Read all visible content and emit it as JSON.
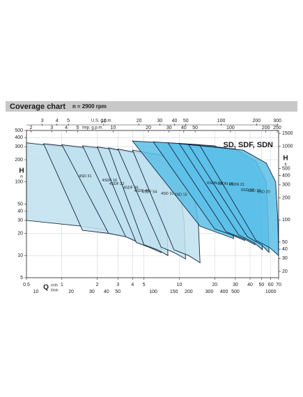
{
  "chart_data": {
    "type": "area",
    "title": "Coverage chart",
    "subtitle": "n ≈ 2900 rpm",
    "annotation": "SD, SDF, SDN",
    "x_label": "Q",
    "x_unit": "m³/h",
    "y_label": "H",
    "y_unit": "m",
    "y2_label": "H",
    "y2_unit": "ft",
    "log_x": true,
    "log_y": true,
    "grid": true,
    "xlim": [
      0.5,
      70
    ],
    "xticks": [
      0.5,
      1,
      2,
      3,
      4,
      5,
      10,
      20,
      30,
      40,
      50,
      60,
      70
    ],
    "ylim": [
      5,
      500
    ],
    "yticks": [
      5,
      10,
      20,
      30,
      40,
      50,
      100,
      200,
      300,
      400,
      500
    ],
    "y2lim": [
      16.4,
      1640
    ],
    "y2ticks": [
      20,
      30,
      40,
      50,
      100,
      200,
      300,
      400,
      500,
      1000,
      1500
    ],
    "x2_axes": [
      {
        "label": "U.S. g.p.m.",
        "lim": [
          2.2,
          308
        ],
        "ticks": [
          3,
          4,
          5,
          10,
          20,
          30,
          40,
          50,
          100,
          200,
          300
        ]
      },
      {
        "label": "Imp. g.p.m.",
        "lim": [
          1.83,
          257
        ],
        "ticks": [
          2,
          3,
          4,
          5,
          10,
          20,
          30,
          40,
          50,
          100,
          200,
          250
        ]
      },
      {
        "label": "l/min",
        "lim": [
          8.33,
          1167
        ],
        "ticks": [
          10,
          20,
          30,
          40,
          50,
          100,
          150,
          200,
          300,
          400,
          500,
          1000
        ]
      }
    ],
    "series": [
      {
        "name": "4SD 31",
        "color": "#bfe0ef",
        "x": [
          0.5,
          1,
          1.5,
          2,
          2.3,
          2.4,
          1.5,
          0.5
        ],
        "values": [
          340,
          300,
          240,
          150,
          60,
          22,
          25,
          30
        ]
      },
      {
        "name": "4SDF 16",
        "color": "#bfe0ef",
        "x": [
          0.7,
          1.5,
          2.5,
          3.3,
          3.5,
          3.6,
          2.5,
          1.5
        ],
        "values": [
          330,
          290,
          220,
          120,
          50,
          18,
          20,
          22
        ]
      },
      {
        "name": "4SDF 22",
        "color": "#bfe0ef",
        "x": [
          1,
          2,
          3,
          3.8,
          4.3,
          4.4,
          3.5,
          2.5
        ],
        "values": [
          320,
          280,
          220,
          140,
          40,
          16,
          18,
          20
        ]
      },
      {
        "name": "4SDF 36",
        "color": "#bfe0ef",
        "x": [
          1.5,
          3,
          4,
          5,
          5.6,
          5.7,
          4.5,
          3.5
        ],
        "values": [
          310,
          270,
          200,
          120,
          35,
          13,
          15,
          18
        ]
      },
      {
        "name": "4SDF 46",
        "color": "#bfe0ef",
        "x": [
          2,
          3.5,
          5,
          6.2,
          6.8,
          7,
          5.5,
          4.3
        ],
        "values": [
          300,
          260,
          190,
          110,
          30,
          11,
          13,
          15
        ]
      },
      {
        "name": "4SDF 54",
        "color": "#bfe0ef",
        "x": [
          2.5,
          4,
          6,
          7.2,
          7.8,
          8,
          6.5,
          5
        ],
        "values": [
          290,
          250,
          180,
          100,
          30,
          10,
          12,
          14
        ]
      },
      {
        "name": "4SD 10",
        "color": "#bfe0ef",
        "x": [
          3,
          5,
          8,
          10,
          11,
          11.3,
          9,
          7
        ],
        "values": [
          280,
          240,
          170,
          90,
          28,
          9,
          11,
          13
        ]
      },
      {
        "name": "4SD 15",
        "color": "#bfe0ef",
        "x": [
          4,
          7,
          11,
          13,
          14.5,
          15,
          12,
          9
        ],
        "values": [
          270,
          230,
          160,
          90,
          28,
          8,
          10,
          12
        ]
      },
      {
        "name": "6SDN 12",
        "color": "#5cbfe8",
        "x": [
          4,
          10,
          20,
          26,
          28,
          29,
          22,
          15
        ],
        "values": [
          360,
          330,
          230,
          120,
          40,
          17,
          20,
          25
        ]
      },
      {
        "name": "6SDN 16",
        "color": "#5cbfe8",
        "x": [
          6,
          15,
          25,
          32,
          35,
          36,
          28,
          20
        ],
        "values": [
          350,
          320,
          220,
          130,
          40,
          16,
          19,
          23
        ]
      },
      {
        "name": "6SDN 21",
        "color": "#5cbfe8",
        "x": [
          8,
          20,
          32,
          40,
          43,
          44,
          35,
          25
        ],
        "values": [
          340,
          310,
          210,
          120,
          40,
          14,
          17,
          21
        ]
      },
      {
        "name": "6SD 18",
        "color": "#5cbfe8",
        "x": [
          10,
          25,
          40,
          48,
          50,
          51,
          43,
          32
        ],
        "values": [
          330,
          290,
          200,
          110,
          30,
          12,
          15,
          19
        ]
      },
      {
        "name": "6SD 19",
        "color": "#5cbfe8",
        "x": [
          12,
          30,
          45,
          55,
          57,
          58,
          50,
          38
        ],
        "values": [
          320,
          280,
          190,
          100,
          30,
          11,
          14,
          18
        ]
      },
      {
        "name": "6SD 20",
        "color": "#5cbfe8",
        "x": [
          15,
          35,
          55,
          66,
          69,
          70,
          58,
          45
        ],
        "values": [
          310,
          270,
          180,
          100,
          30,
          10,
          13,
          16
        ]
      }
    ]
  }
}
